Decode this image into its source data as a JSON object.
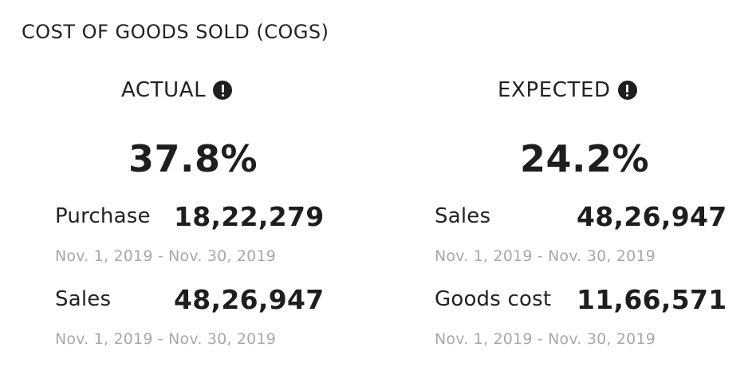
{
  "card": {
    "title": "COST OF GOODS SOLD (COGS)"
  },
  "actual": {
    "heading": "ACTUAL",
    "percent": "37.8%",
    "rows": [
      {
        "label": "Purchase",
        "value": "18,22,279",
        "date_range": "Nov. 1, 2019 - Nov. 30, 2019"
      },
      {
        "label": "Sales",
        "value": "48,26,947",
        "date_range": "Nov. 1, 2019 - Nov. 30, 2019"
      }
    ]
  },
  "expected": {
    "heading": "EXPECTED",
    "percent": "24.2%",
    "rows": [
      {
        "label": "Sales",
        "value": "48,26,947",
        "date_range": "Nov. 1, 2019 - Nov. 30, 2019"
      },
      {
        "label": "Goods cost",
        "value": "11,66,571",
        "date_range": "Nov. 1, 2019 - Nov. 30, 2019"
      }
    ]
  },
  "icons": {
    "info": "info-icon"
  },
  "colors": {
    "text": "#1e1e1e",
    "muted": "#a8a8a8",
    "background": "#ffffff"
  }
}
